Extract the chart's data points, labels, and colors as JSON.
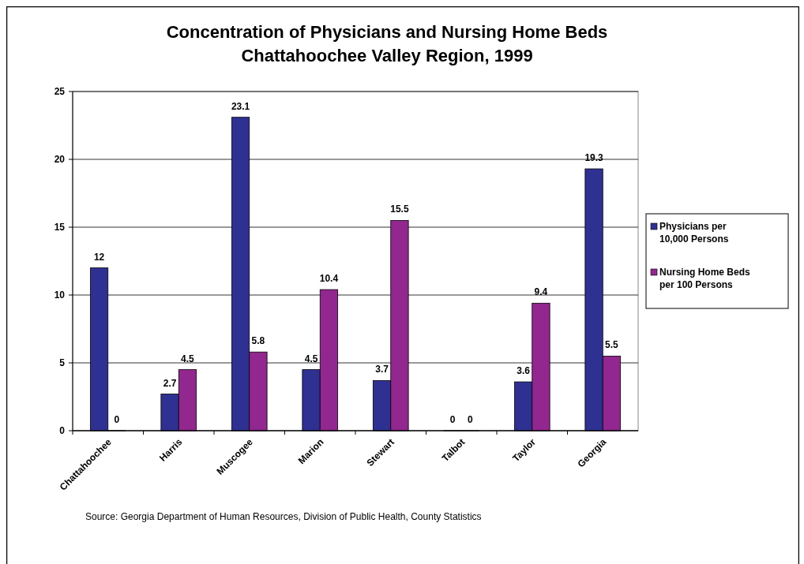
{
  "chart_data": {
    "type": "bar",
    "title": "Concentration of Physicians and Nursing Home Beds\nChattahoochee Valley Region, 1999",
    "categories": [
      "Chattahoochee",
      "Harris",
      "Muscogee",
      "Marion",
      "Stewart",
      "Talbot",
      "Taylor",
      "Georgia"
    ],
    "series": [
      {
        "name": "Physicians per 10,000 Persons",
        "color": "#2e3192",
        "values": [
          12,
          2.7,
          23.1,
          4.5,
          3.7,
          0,
          3.6,
          19.3
        ]
      },
      {
        "name": "Nursing Home Beds per 100 Persons",
        "color": "#92278f",
        "values": [
          0,
          4.5,
          5.8,
          10.4,
          15.5,
          0,
          9.4,
          5.5
        ]
      }
    ],
    "ylim": [
      0,
      25
    ],
    "yticks": [
      0,
      5,
      10,
      15,
      20,
      25
    ],
    "grid": "y",
    "legend": "right",
    "data_labels": true,
    "annotations": [
      "Source: Georgia Department of Human Resources, Division of Public Health, County Statistics"
    ]
  }
}
